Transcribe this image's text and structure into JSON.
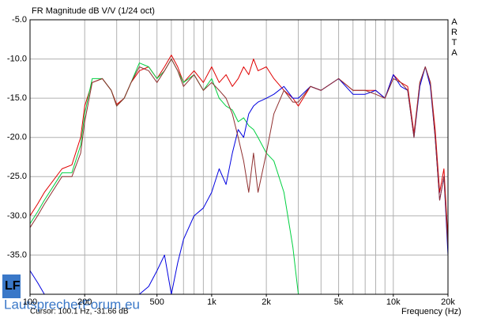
{
  "chart_data": {
    "type": "line",
    "title": "FR Magnitude dB V/V (1/24 oct)",
    "brand": "ARTA",
    "xlabel": "Frequency (Hz)",
    "cursor": "Cursor: 100.1 Hz, -31.66 dB",
    "watermark": "LautsprecherForum.eu",
    "xscale": "log",
    "grid": true,
    "xlim": [
      100,
      20000
    ],
    "ylim": [
      -40,
      -5
    ],
    "xticks": [
      100,
      200,
      500,
      {
        "value": 1000,
        "label": "1k"
      },
      {
        "value": 2000,
        "label": "2k"
      },
      {
        "value": 5000,
        "label": "5k"
      },
      {
        "value": 10000,
        "label": "10k"
      },
      {
        "value": 20000,
        "label": "20k"
      }
    ],
    "xgrid": [
      100,
      200,
      300,
      400,
      500,
      600,
      700,
      800,
      900,
      1000,
      2000,
      3000,
      4000,
      5000,
      6000,
      7000,
      8000,
      9000,
      10000,
      20000
    ],
    "yticks": [
      {
        "value": -5,
        "label": "-5.0"
      },
      {
        "value": -10,
        "label": "-10.0"
      },
      {
        "value": -15,
        "label": "-15.0"
      },
      {
        "value": -20,
        "label": "-20.0"
      },
      {
        "value": -25,
        "label": "-25.0"
      },
      {
        "value": -30,
        "label": "-30.0"
      },
      {
        "value": -35,
        "label": "-35.0"
      }
    ],
    "x": [
      100,
      110,
      120,
      150,
      170,
      190,
      200,
      220,
      250,
      280,
      300,
      330,
      360,
      400,
      450,
      500,
      550,
      600,
      650,
      700,
      800,
      900,
      1000,
      1100,
      1200,
      1300,
      1400,
      1500,
      1600,
      1700,
      1800,
      2000,
      2200,
      2500,
      2800,
      3000,
      3500,
      4000,
      5000,
      6000,
      7000,
      8000,
      9000,
      10000,
      11000,
      12000,
      13000,
      14000,
      15000,
      16000,
      17000,
      18000,
      19000,
      20000
    ],
    "series": [
      {
        "color": "#e00000",
        "values": [
          -30,
          -28.5,
          -27,
          -24,
          -23.5,
          -20,
          -16,
          -13,
          -12.5,
          -14,
          -15.8,
          -15,
          -13,
          -11.5,
          -11,
          -12.5,
          -11,
          -9.5,
          -11,
          -13,
          -11.5,
          -13,
          -11,
          -13,
          -12,
          -13.5,
          -12.5,
          -11,
          -12,
          -10,
          -11.5,
          -11,
          -12.5,
          -14,
          -15,
          -16,
          -13.5,
          -14,
          -12.5,
          -14,
          -14,
          -14,
          -15,
          -12,
          -13,
          -13.5,
          -19.5,
          -13,
          -11,
          -13,
          -19,
          -27,
          -24,
          -33
        ]
      },
      {
        "color": "#00d040",
        "values": [
          -31,
          -29.5,
          -28,
          -24.5,
          -24.5,
          -21,
          -17,
          -12.5,
          -12.5,
          -14,
          -16,
          -15,
          -13,
          -10.5,
          -11,
          -12.5,
          -11.5,
          -10,
          -11.5,
          -13,
          -12,
          -14,
          -12.5,
          -15,
          -16,
          -16.5,
          -18,
          -17.5,
          -18.5,
          -19,
          -20,
          -22,
          -23,
          -27,
          -34,
          -40,
          null,
          null,
          null,
          null,
          null,
          null,
          null,
          null,
          null,
          null,
          null,
          null,
          null,
          null,
          null,
          null,
          null,
          null
        ]
      },
      {
        "color": "#0000e0",
        "values": [
          -37,
          -38.5,
          -40,
          null,
          null,
          null,
          null,
          null,
          null,
          null,
          null,
          null,
          null,
          -40,
          -39,
          -37,
          -35,
          -40,
          -36,
          -33,
          -30,
          -29,
          -27,
          -24,
          -26,
          -22,
          -19,
          -20,
          -17,
          -16,
          -15.5,
          -15,
          -14.5,
          -13.5,
          -15,
          -15,
          -13.5,
          -14,
          -12.5,
          -14.5,
          -14.5,
          -14,
          -15,
          -12,
          -13.5,
          -14,
          -20,
          -13.5,
          -11,
          -13.5,
          -20,
          -28,
          -25,
          -35
        ]
      },
      {
        "color": "#903030",
        "values": [
          -31.5,
          -30,
          -28.5,
          -25,
          -25,
          -22,
          -18,
          -13,
          -12.5,
          -14,
          -16,
          -15,
          -13,
          -11,
          -11.5,
          -13,
          -11.5,
          -10,
          -11.5,
          -13.5,
          -12,
          -14,
          -13,
          -14,
          -15,
          -17,
          -20,
          -23,
          -27,
          -22,
          -27,
          -22,
          -17,
          -14,
          -15.5,
          -15.5,
          -13.5,
          -14,
          -12.5,
          -14,
          -14,
          -14.5,
          -15,
          -12.5,
          -13,
          -14,
          -20,
          -13,
          -11,
          -13,
          -20,
          -28,
          -25,
          -34
        ]
      }
    ]
  }
}
